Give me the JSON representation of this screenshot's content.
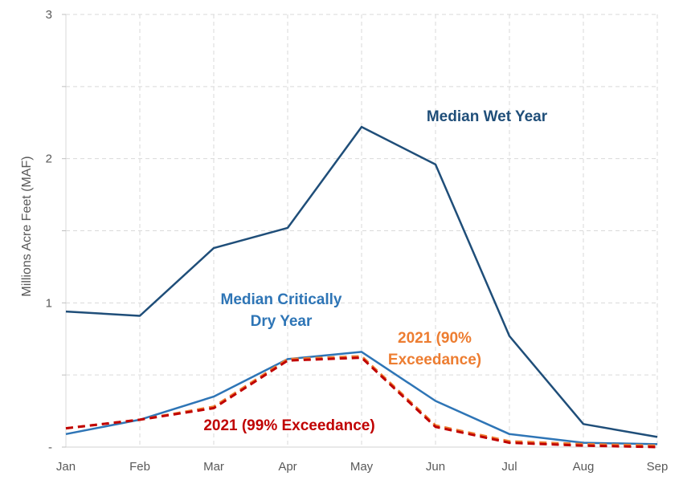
{
  "chart_data": {
    "type": "line",
    "ylabel": "Millions Acre Feet (MAF)",
    "categories": [
      "Jan",
      "Feb",
      "Mar",
      "Apr",
      "May",
      "Jun",
      "Jul",
      "Aug",
      "Sep"
    ],
    "ylim": [
      0,
      3
    ],
    "yticks": [
      "-",
      "1",
      "2",
      "3"
    ],
    "grid": true,
    "series": [
      {
        "name": "Median Wet Year",
        "values": [
          0.94,
          0.91,
          1.38,
          1.52,
          2.22,
          1.96,
          0.77,
          0.16,
          0.07
        ],
        "color": "#1F4E79",
        "dash": false
      },
      {
        "name": "Median Critically Dry Year",
        "values": [
          0.09,
          0.19,
          0.35,
          0.61,
          0.66,
          0.32,
          0.09,
          0.03,
          0.02
        ],
        "color": "#2E75B6",
        "dash": false
      },
      {
        "name": "2021 (90% Exceedance)",
        "values": [
          0.13,
          0.19,
          0.28,
          0.61,
          0.63,
          0.15,
          0.04,
          0.02,
          0.01
        ],
        "color": "#ED7D31",
        "dash": true
      },
      {
        "name": "2021 (99% Exceedance)",
        "values": [
          0.13,
          0.19,
          0.27,
          0.6,
          0.62,
          0.14,
          0.03,
          0.01,
          0.0
        ],
        "color": "#C00000",
        "dash": true
      }
    ],
    "annotations": [
      {
        "lines": [
          "Median Wet Year"
        ],
        "color": "#1F4E79"
      },
      {
        "lines": [
          "Median Critically",
          "Dry Year"
        ],
        "color": "#2E75B6"
      },
      {
        "lines": [
          "2021 (90%",
          "Exceedance)"
        ],
        "color": "#ED7D31"
      },
      {
        "lines": [
          "2021 (99% Exceedance)"
        ],
        "color": "#C00000"
      }
    ]
  }
}
